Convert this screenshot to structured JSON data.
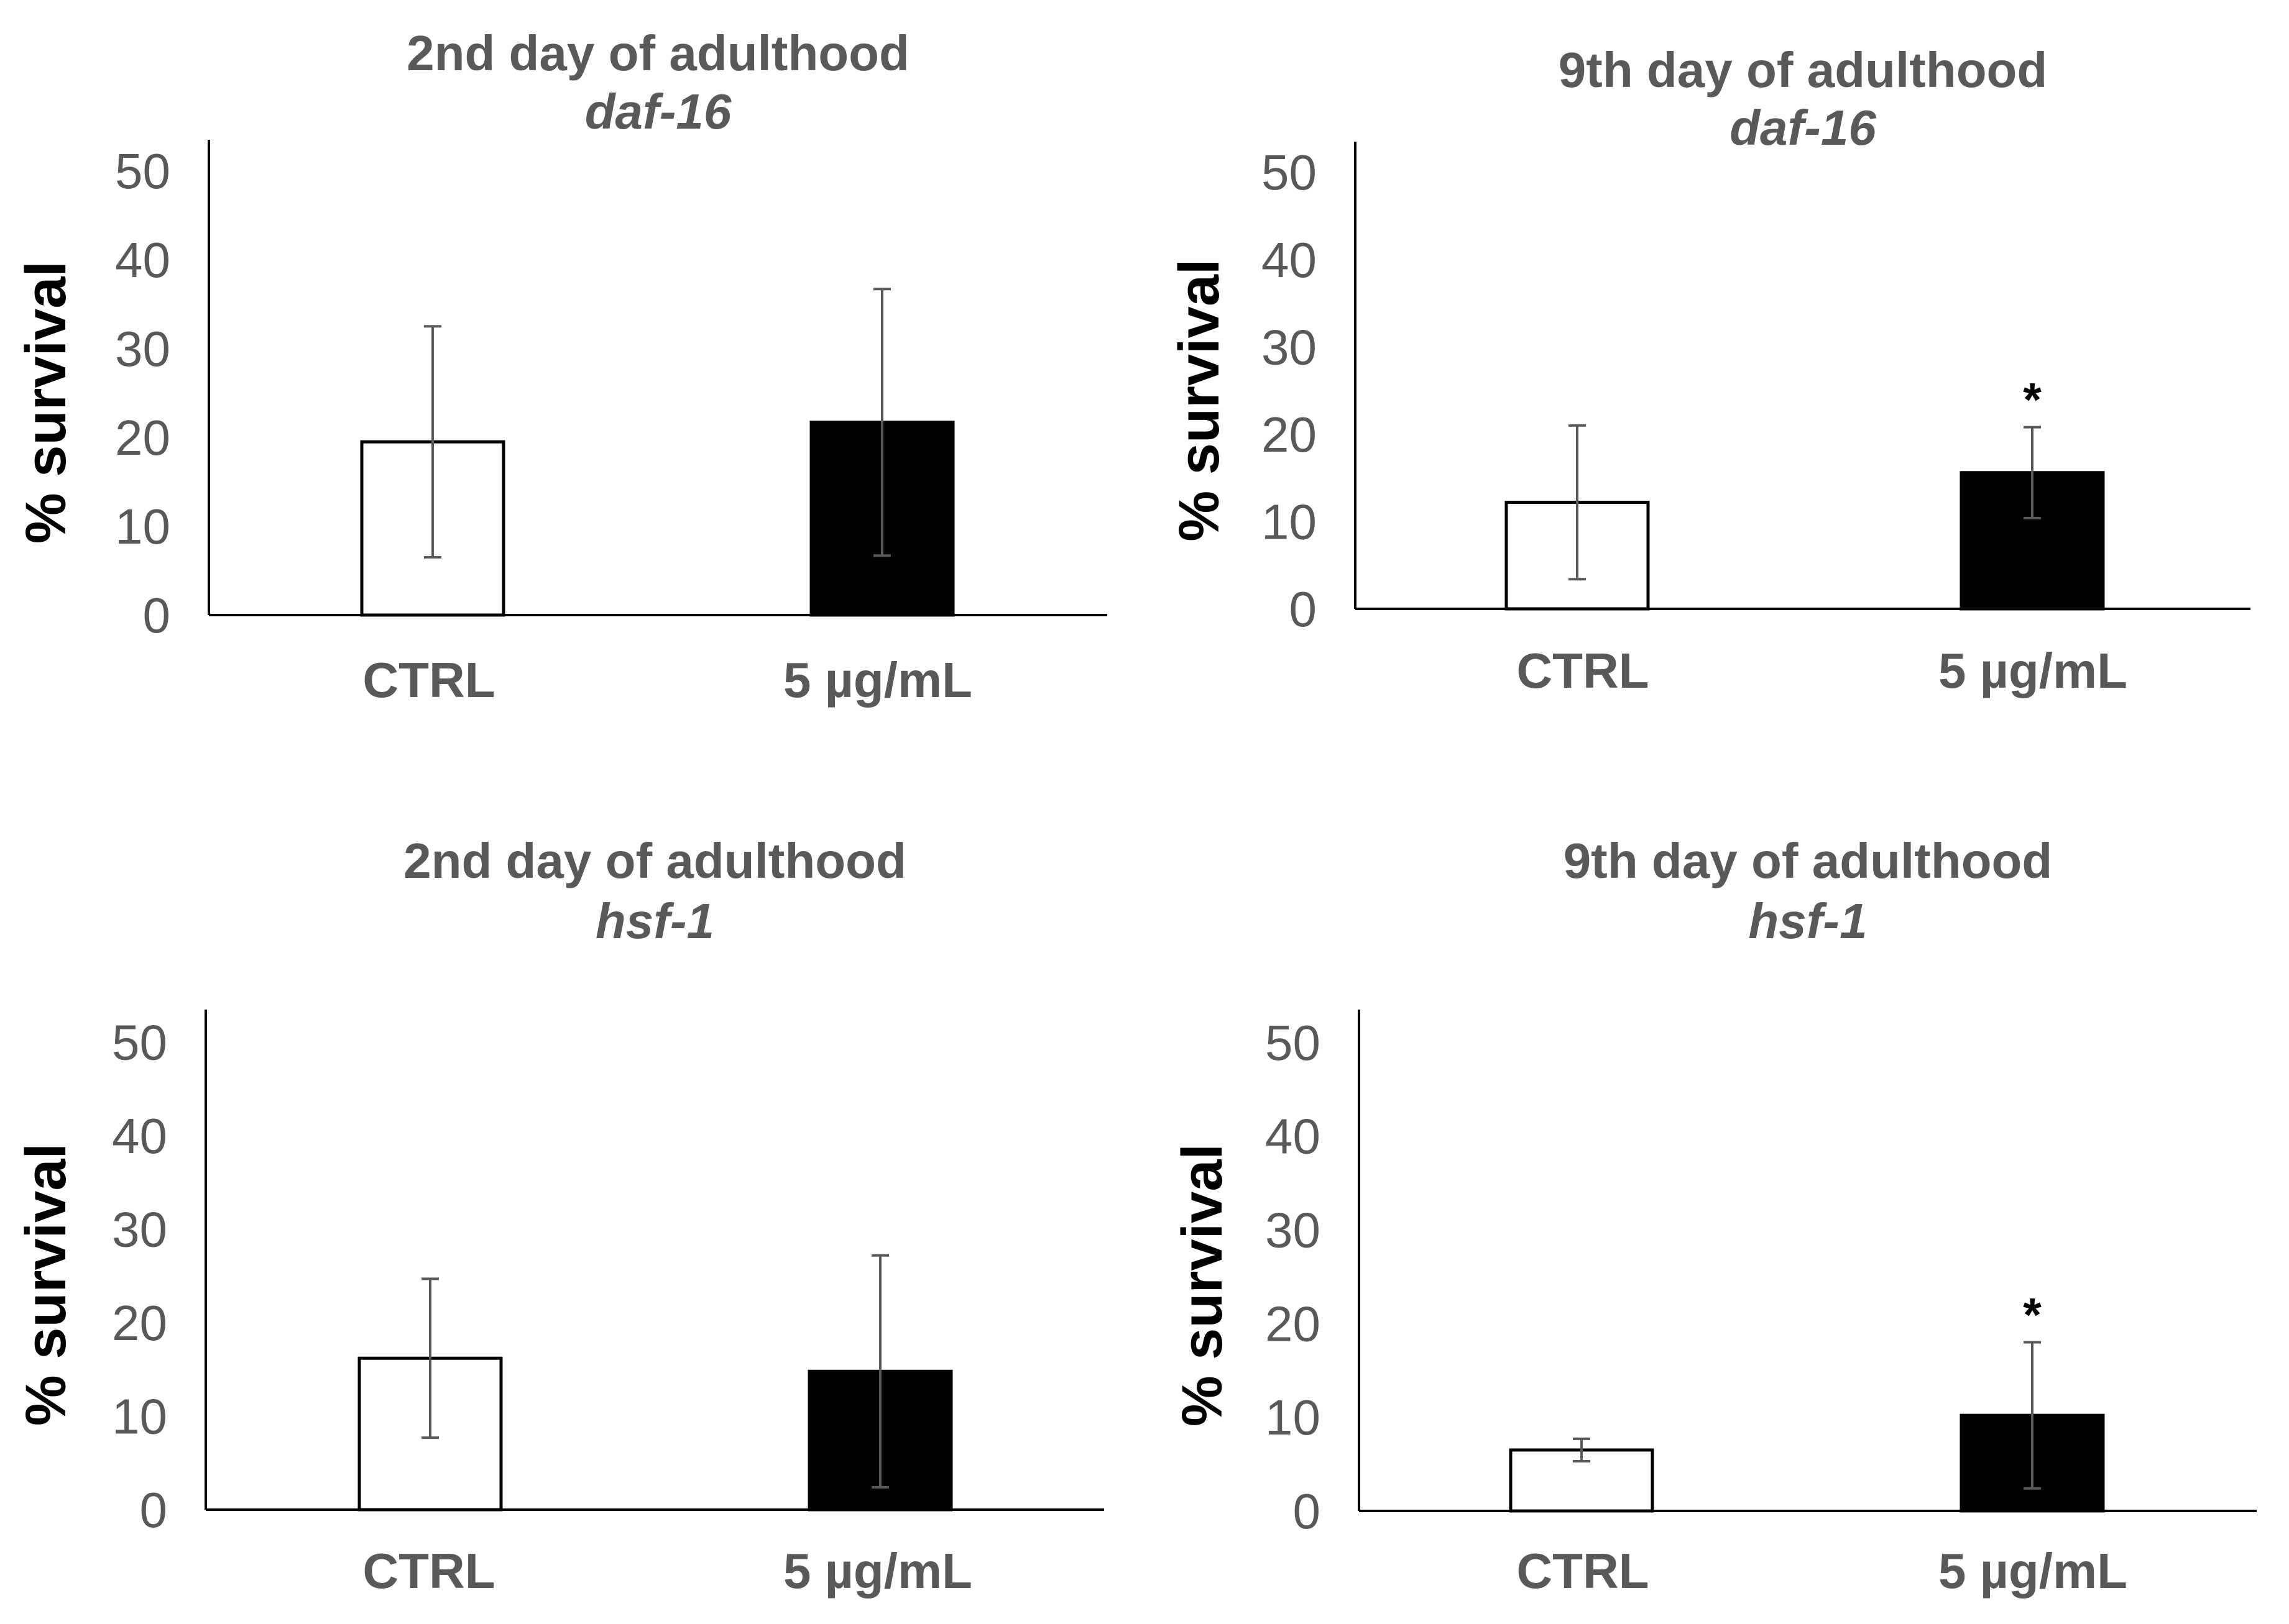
{
  "chart_data": [
    {
      "type": "bar",
      "title": "2nd day of adulthood",
      "subtitle": "daf-16",
      "ylabel": "% survival",
      "xlabel": "",
      "categories": [
        "CTRL",
        "5 µg/mL"
      ],
      "values": [
        19.5,
        21.7
      ],
      "errors": [
        13.0,
        15.0
      ],
      "colors": [
        "#ffffff",
        "#000000"
      ],
      "ylim": [
        0,
        50
      ],
      "yticks": [
        "0",
        "10",
        "20",
        "30",
        "40",
        "50"
      ],
      "annotations": [
        "",
        ""
      ],
      "grid": false
    },
    {
      "type": "bar",
      "title": "9th day of adulthood",
      "subtitle": "daf-16",
      "ylabel": "% survival",
      "xlabel": "",
      "categories": [
        "CTRL",
        "5 µg/mL"
      ],
      "values": [
        12.2,
        15.6
      ],
      "errors": [
        8.8,
        5.2
      ],
      "colors": [
        "#ffffff",
        "#000000"
      ],
      "ylim": [
        0,
        50
      ],
      "yticks": [
        "0",
        "10",
        "20",
        "30",
        "40",
        "50"
      ],
      "annotations": [
        "",
        "*"
      ],
      "grid": false
    },
    {
      "type": "bar",
      "title": "2nd day of adulthood",
      "subtitle": "hsf-1",
      "ylabel": "% survival",
      "xlabel": "",
      "categories": [
        "CTRL",
        "5 µg/mL"
      ],
      "values": [
        16.2,
        14.8
      ],
      "errors": [
        8.5,
        12.4
      ],
      "colors": [
        "#ffffff",
        "#000000"
      ],
      "ylim": [
        0,
        50
      ],
      "yticks": [
        "0",
        "10",
        "20",
        "30",
        "40",
        "50"
      ],
      "annotations": [
        "",
        ""
      ],
      "grid": false
    },
    {
      "type": "bar",
      "title": "9th day of adulthood",
      "subtitle": "hsf-1",
      "ylabel": "% survival",
      "xlabel": "",
      "categories": [
        "CTRL",
        "5 µg/mL"
      ],
      "values": [
        6.5,
        10.2
      ],
      "errors": [
        1.2,
        7.8
      ],
      "colors": [
        "#ffffff",
        "#000000"
      ],
      "ylim": [
        0,
        50
      ],
      "yticks": [
        "0",
        "10",
        "20",
        "30",
        "40",
        "50"
      ],
      "annotations": [
        "",
        "*"
      ],
      "grid": false
    }
  ]
}
